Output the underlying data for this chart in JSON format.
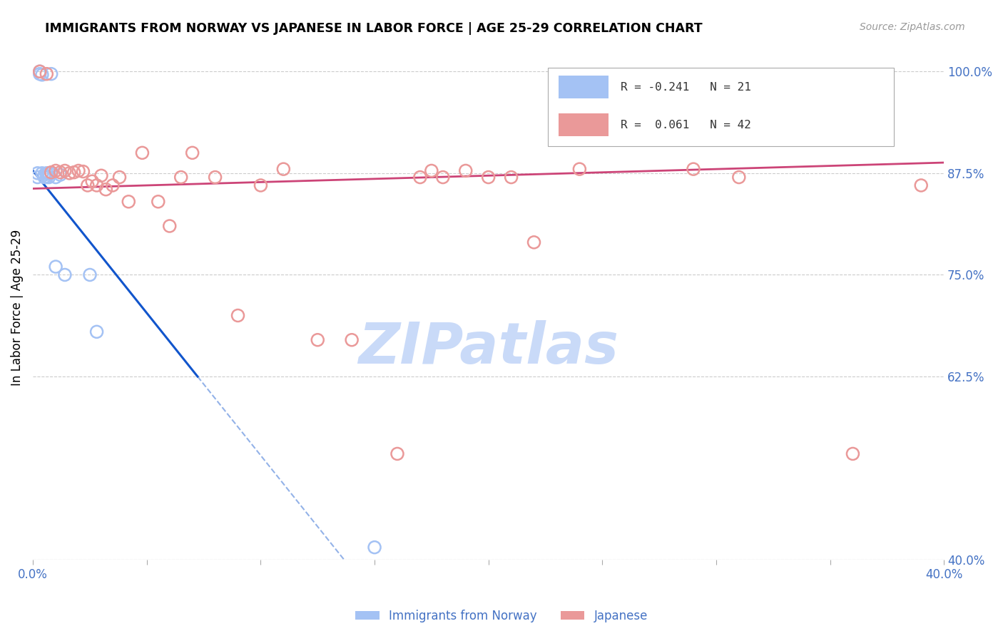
{
  "title": "IMMIGRANTS FROM NORWAY VS JAPANESE IN LABOR FORCE | AGE 25-29 CORRELATION CHART",
  "source": "Source: ZipAtlas.com",
  "ylabel": "In Labor Force | Age 25-29",
  "xlim": [
    0.0,
    0.4
  ],
  "ylim": [
    0.4,
    1.02
  ],
  "norway_x": [
    0.002,
    0.002,
    0.003,
    0.003,
    0.004,
    0.004,
    0.005,
    0.005,
    0.006,
    0.006,
    0.007,
    0.007,
    0.008,
    0.008,
    0.01,
    0.01,
    0.012,
    0.014,
    0.025,
    0.028,
    0.15
  ],
  "norway_y": [
    0.875,
    0.87,
    1.0,
    0.997,
    0.996,
    0.875,
    0.873,
    0.87,
    0.875,
    0.87,
    0.875,
    0.87,
    0.997,
    0.875,
    0.76,
    0.87,
    0.873,
    0.75,
    0.75,
    0.68,
    0.415
  ],
  "japanese_x": [
    0.003,
    0.006,
    0.008,
    0.01,
    0.012,
    0.014,
    0.016,
    0.018,
    0.02,
    0.022,
    0.024,
    0.026,
    0.028,
    0.03,
    0.032,
    0.035,
    0.038,
    0.042,
    0.048,
    0.055,
    0.06,
    0.065,
    0.07,
    0.08,
    0.09,
    0.1,
    0.11,
    0.125,
    0.14,
    0.16,
    0.17,
    0.175,
    0.18,
    0.19,
    0.2,
    0.21,
    0.22,
    0.24,
    0.29,
    0.31,
    0.36,
    0.39
  ],
  "japanese_y": [
    1.0,
    0.997,
    0.876,
    0.878,
    0.876,
    0.878,
    0.875,
    0.876,
    0.878,
    0.877,
    0.86,
    0.865,
    0.86,
    0.872,
    0.855,
    0.86,
    0.87,
    0.84,
    0.9,
    0.84,
    0.81,
    0.87,
    0.9,
    0.87,
    0.7,
    0.86,
    0.88,
    0.67,
    0.67,
    0.53,
    0.87,
    0.878,
    0.87,
    0.878,
    0.87,
    0.87,
    0.79,
    0.88,
    0.88,
    0.87,
    0.53,
    0.86
  ],
  "norway_color": "#a4c2f4",
  "japanese_color": "#ea9999",
  "norway_line_color": "#1155cc",
  "japanese_line_color": "#cc4477",
  "norway_R": -0.241,
  "norway_N": 21,
  "japanese_R": 0.061,
  "japanese_N": 42,
  "norway_slope": -3.5,
  "norway_intercept": 0.878,
  "japanese_slope": 0.08,
  "japanese_intercept": 0.856,
  "watermark": "ZIPatlas",
  "watermark_color": "#c9daf8",
  "background_color": "#ffffff",
  "title_color": "#000000",
  "axis_label_color": "#000000",
  "tick_color": "#4472c4",
  "grid_color": "#c0c0c0"
}
